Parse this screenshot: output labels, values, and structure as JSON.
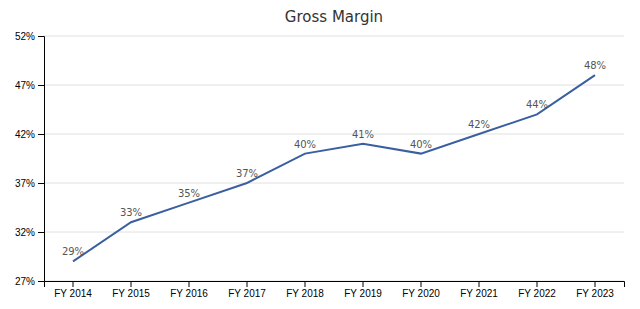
{
  "chart_data": {
    "type": "line",
    "title": "Gross Margin",
    "categories": [
      "FY 2014",
      "FY 2015",
      "FY 2016",
      "FY 2017",
      "FY 2018",
      "FY 2019",
      "FY 2020",
      "FY 2021",
      "FY 2022",
      "FY 2023"
    ],
    "values": [
      0.29,
      0.33,
      0.35,
      0.37,
      0.4,
      0.41,
      0.4,
      0.42,
      0.44,
      0.48
    ],
    "value_labels": [
      "29%",
      "33%",
      "35%",
      "37%",
      "40%",
      "41%",
      "40%",
      "42%",
      "44%",
      "48%"
    ],
    "color": "#3a5fa0",
    "ylim": [
      0.27,
      0.52
    ],
    "yticks": [
      {
        "value": 0.27,
        "label": "27%"
      },
      {
        "value": 0.32,
        "label": "32%"
      },
      {
        "value": 0.37,
        "label": "37%"
      },
      {
        "value": 0.42,
        "label": "42%"
      },
      {
        "value": 0.47,
        "label": "47%"
      },
      {
        "value": 0.52,
        "label": "52%"
      }
    ],
    "grid": true,
    "data_labels": true
  }
}
